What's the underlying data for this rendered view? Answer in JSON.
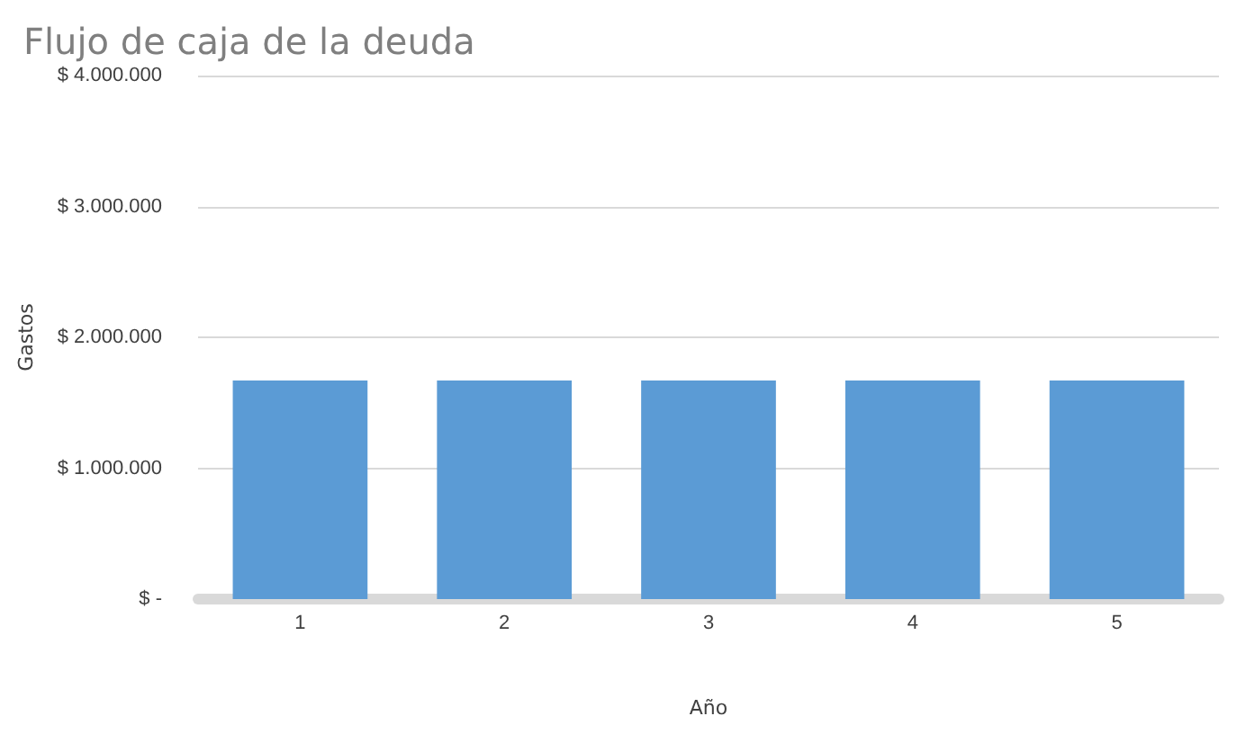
{
  "chart_data": {
    "type": "bar",
    "title": "Flujo de caja de la deuda",
    "xlabel": "Año",
    "ylabel": "Gastos",
    "categories": [
      "1",
      "2",
      "3",
      "4",
      "5"
    ],
    "values": [
      1670000,
      1670000,
      1670000,
      1670000,
      1670000
    ],
    "color": "#5b9bd5",
    "ylim": [
      0,
      4000000
    ],
    "yticks": [
      {
        "value": 0,
        "label": "$ -"
      },
      {
        "value": 1000000,
        "label": "$ 1.000.000"
      },
      {
        "value": 2000000,
        "label": "$ 2.000.000"
      },
      {
        "value": 3000000,
        "label": "$ 3.000.000"
      },
      {
        "value": 4000000,
        "label": "$ 4.000.000"
      }
    ],
    "grid": "y"
  }
}
